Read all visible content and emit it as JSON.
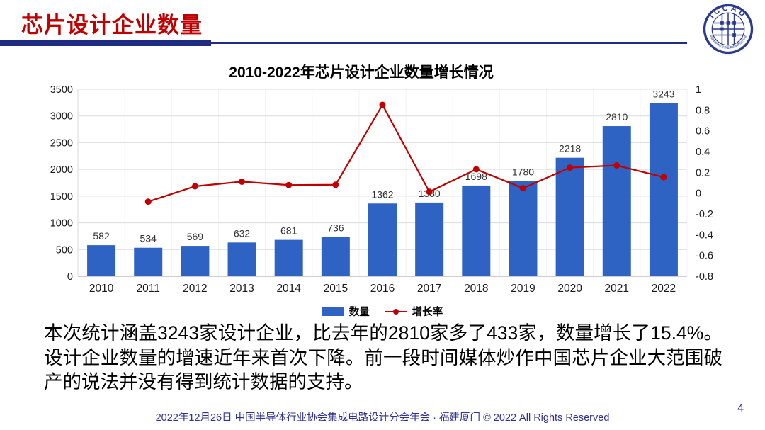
{
  "header": {
    "title": "芯片设计企业数量",
    "accent_color": "#C00000",
    "underline_color": "#1F2C85"
  },
  "logo": {
    "acronym": "ICCAD",
    "ring_text": "中国半导体行业协会集成电路设计分会",
    "color": "#2B3990"
  },
  "chart_data": {
    "type": "bar",
    "title": "2010-2022年芯片设计企业数量增长情况",
    "categories": [
      "2010",
      "2011",
      "2012",
      "2013",
      "2014",
      "2015",
      "2016",
      "2017",
      "2018",
      "2019",
      "2020",
      "2021",
      "2022"
    ],
    "series": [
      {
        "name": "数量",
        "type": "bar",
        "color": "#2E63C4",
        "values": [
          582,
          534,
          569,
          632,
          681,
          736,
          1362,
          1380,
          1698,
          1780,
          2218,
          2810,
          3243
        ]
      },
      {
        "name": "增长率",
        "type": "line",
        "color": "#C00000",
        "axis": "right",
        "values": [
          null,
          -0.082,
          0.066,
          0.111,
          0.078,
          0.081,
          0.85,
          0.013,
          0.23,
          0.048,
          0.246,
          0.267,
          0.154
        ]
      }
    ],
    "left_axis": {
      "min": 0,
      "max": 3500,
      "step": 500,
      "ticks": [
        "0",
        "500",
        "1000",
        "1500",
        "2000",
        "2500",
        "3000",
        "3500"
      ]
    },
    "right_axis": {
      "min": -0.8,
      "max": 1,
      "step": 0.2,
      "ticks": [
        "-0.8",
        "-0.6",
        "-0.4",
        "-0.2",
        "0",
        "0.2",
        "0.4",
        "0.6",
        "0.8",
        "1"
      ]
    },
    "grid": true,
    "legend_position": "bottom"
  },
  "body": {
    "text": "本次统计涵盖3243家设计企业，比去年的2810家多了433家，数量增长了15.4%。设计企业数量的增速近年来首次下降。前一段时间媒体炒作中国芯片企业大范围破产的说法并没有得到统计数据的支持。"
  },
  "footer": {
    "text": "2022年12月26日 中国半导体行业协会集成电路设计分会年会 · 福建厦门 © 2022 All Rights Reserved",
    "page_number": "4"
  }
}
